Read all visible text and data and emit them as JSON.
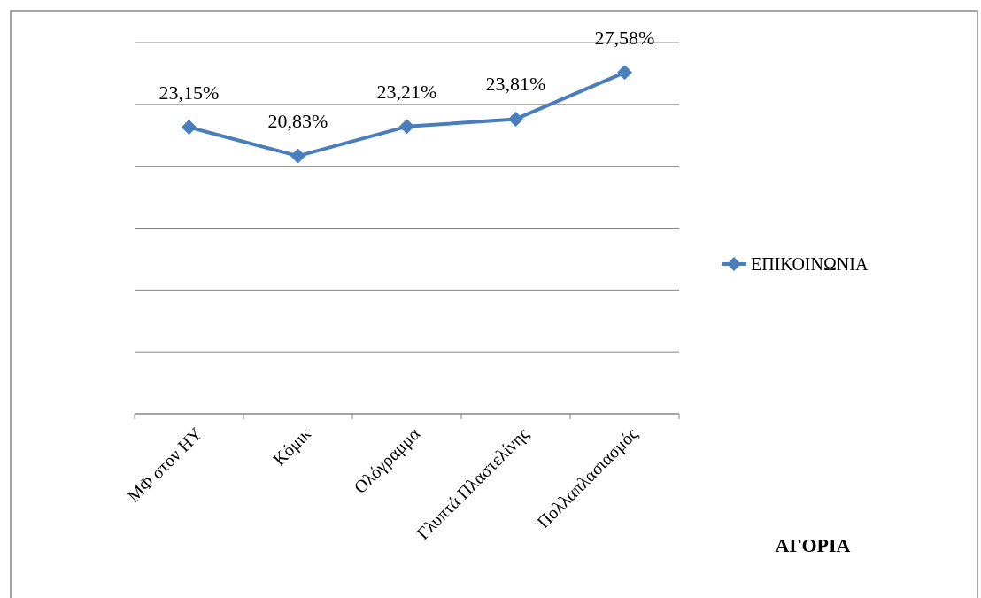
{
  "chart_data": {
    "type": "line",
    "title": "ΑΓΟΡΙΑ",
    "categories": [
      "ΜΦ στον ΗΥ",
      "Κόμικ",
      "Ολόγραμμα",
      "Γλυπτά Πλαστελίνης",
      "Πολλαπλασιασμός"
    ],
    "series": [
      {
        "name": "ΕΠΙΚΟΙΝΩΝΙΑ",
        "color": "#4a7ebb",
        "values": [
          23.15,
          20.83,
          23.21,
          23.81,
          27.58
        ],
        "value_labels": [
          "23,15%",
          "20,83%",
          "23,21%",
          "23,81%",
          "27,58%"
        ]
      }
    ],
    "ylim": [
      0,
      30
    ],
    "yticks": [
      {
        "value": 0,
        "label": null
      },
      {
        "value": 5,
        "label": null
      },
      {
        "value": 10,
        "label": null
      },
      {
        "value": 15,
        "label": null
      },
      {
        "value": 20,
        "label": null
      },
      {
        "value": 25,
        "label": null
      },
      {
        "value": 30,
        "label": null
      }
    ],
    "grid": "y",
    "legend": "right",
    "marker": "diamond",
    "line_style": "solid",
    "tick_labels": "x"
  }
}
